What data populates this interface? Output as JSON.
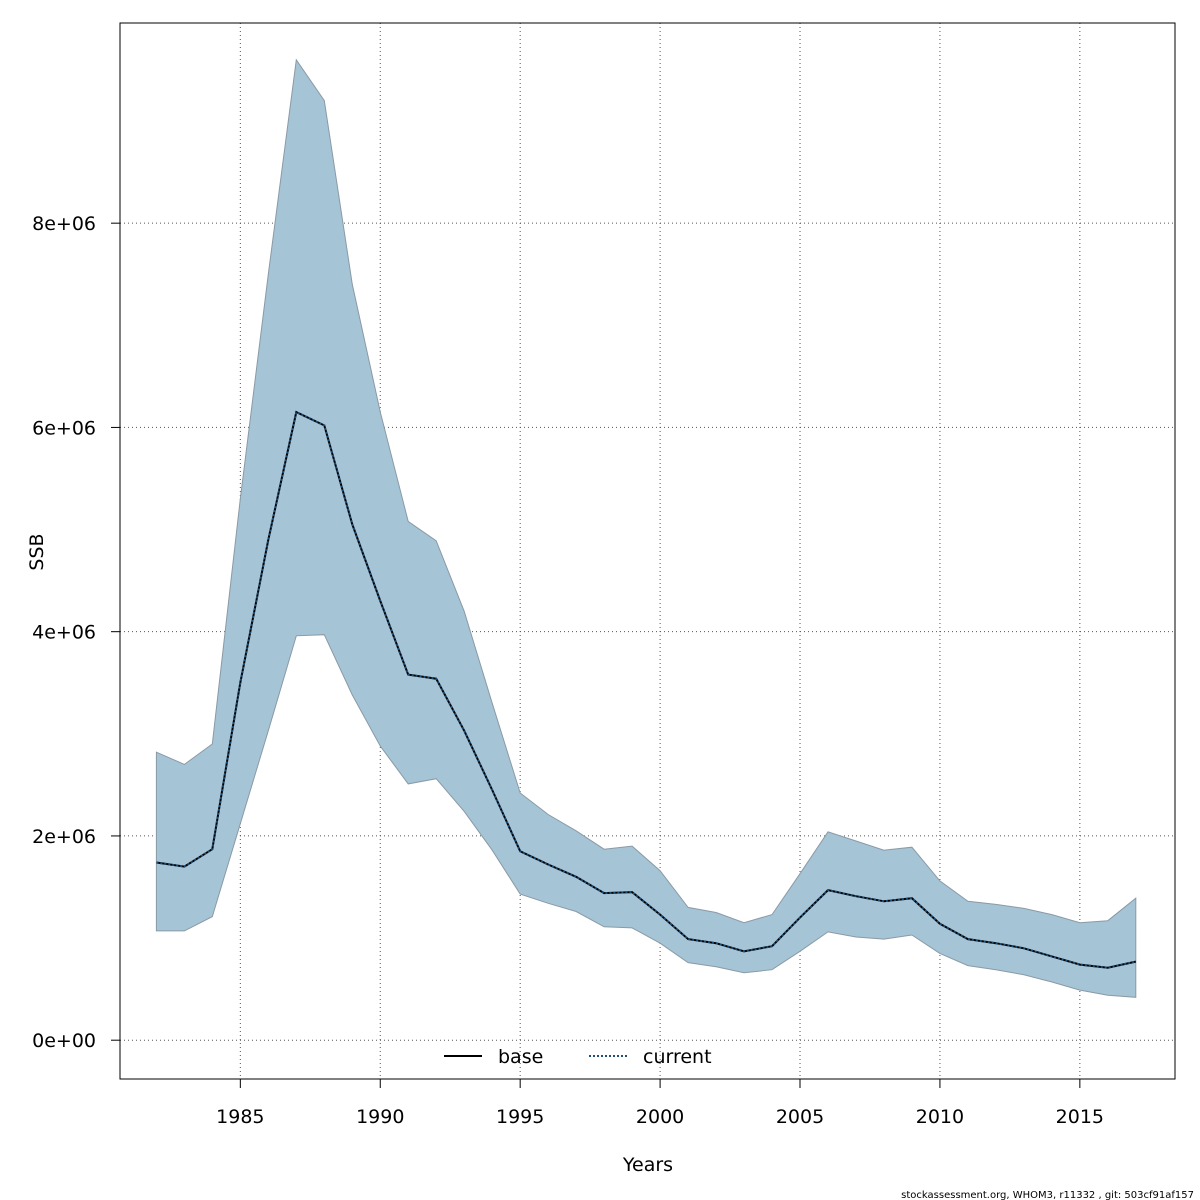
{
  "chart_data": {
    "type": "area",
    "xlabel": "Years",
    "ylabel": "SSB",
    "xlim": [
      1980.7,
      2018.4
    ],
    "ylim": [
      -380000,
      9960000
    ],
    "x_ticks": [
      1985,
      1990,
      1995,
      2000,
      2005,
      2010,
      2015
    ],
    "x_tick_labels": [
      "1985",
      "1990",
      "1995",
      "2000",
      "2005",
      "2010",
      "2015"
    ],
    "y_ticks": [
      0,
      2000000,
      4000000,
      6000000,
      8000000
    ],
    "y_tick_labels": [
      "0e+00",
      "2e+06",
      "4e+06",
      "6e+06",
      "8e+06"
    ],
    "grid": true,
    "legend_position": "bottom-center",
    "band_color": "#a5c4d6",
    "band_edge_color": "#8a9aa6",
    "x": [
      1982,
      1983,
      1984,
      1985,
      1986,
      1987,
      1988,
      1989,
      1990,
      1991,
      1992,
      1993,
      1994,
      1995,
      1996,
      1997,
      1998,
      1999,
      2000,
      2001,
      2002,
      2003,
      2004,
      2005,
      2006,
      2007,
      2008,
      2009,
      2010,
      2011,
      2012,
      2013,
      2014,
      2015,
      2016,
      2017
    ],
    "series": [
      {
        "name": "base",
        "style": "solid",
        "color": "#000000",
        "values": [
          1740000,
          1700000,
          1870000,
          3500000,
          4900000,
          6150000,
          6020000,
          5050000,
          4300000,
          3580000,
          3540000,
          3030000,
          2450000,
          1850000,
          1720000,
          1600000,
          1440000,
          1450000,
          1230000,
          990000,
          950000,
          870000,
          920000,
          1200000,
          1470000,
          1410000,
          1360000,
          1390000,
          1140000,
          990000,
          950000,
          900000,
          820000,
          740000,
          710000,
          770000
        ]
      },
      {
        "name": "current",
        "style": "dotted",
        "color": "#1f4e79",
        "values": [
          1740000,
          1700000,
          1870000,
          3500000,
          4900000,
          6150000,
          6020000,
          5050000,
          4300000,
          3580000,
          3540000,
          3030000,
          2450000,
          1850000,
          1720000,
          1600000,
          1440000,
          1450000,
          1230000,
          990000,
          950000,
          870000,
          920000,
          1200000,
          1470000,
          1410000,
          1360000,
          1390000,
          1140000,
          990000,
          950000,
          900000,
          820000,
          740000,
          710000,
          770000
        ]
      }
    ],
    "band_upper": [
      2820000,
      2700000,
      2900000,
      5300000,
      7500000,
      9600000,
      9200000,
      7400000,
      6150000,
      5080000,
      4890000,
      4200000,
      3300000,
      2420000,
      2210000,
      2050000,
      1870000,
      1900000,
      1660000,
      1300000,
      1250000,
      1150000,
      1230000,
      1630000,
      2040000,
      1950000,
      1860000,
      1890000,
      1560000,
      1360000,
      1330000,
      1290000,
      1230000,
      1150000,
      1170000,
      1390000
    ],
    "band_lower": [
      1070000,
      1070000,
      1210000,
      2120000,
      3030000,
      3960000,
      3970000,
      3380000,
      2880000,
      2510000,
      2560000,
      2240000,
      1860000,
      1430000,
      1340000,
      1260000,
      1110000,
      1100000,
      950000,
      760000,
      720000,
      660000,
      690000,
      870000,
      1060000,
      1010000,
      990000,
      1030000,
      850000,
      730000,
      690000,
      640000,
      570000,
      490000,
      440000,
      420000
    ]
  },
  "footer": {
    "credit": "stockassessment.org, WHOM3, r11332 , git: 503cf91af157"
  }
}
